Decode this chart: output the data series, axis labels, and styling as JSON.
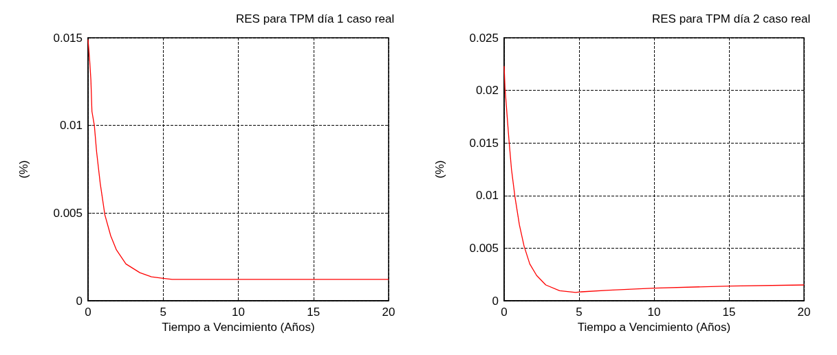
{
  "chart_data": [
    {
      "type": "line",
      "title": "RES para TPM día 1 caso real",
      "xlabel": "Tiempo a Vencimiento (Años)",
      "ylabel": "(%)",
      "xlim": [
        0,
        20
      ],
      "xticks": [
        0,
        5,
        10,
        15,
        20
      ],
      "ylim": [
        0,
        0.015
      ],
      "yticks": [
        0,
        0.005,
        0.01,
        0.015
      ],
      "grid": true,
      "series": [
        {
          "color": "#ff0000",
          "x": [
            0,
            0.11,
            0.19,
            0.26,
            0.42,
            0.57,
            0.81,
            1.12,
            1.51,
            1.89,
            2.52,
            3.45,
            4.22,
            5,
            5.6,
            10,
            15,
            20
          ],
          "values": [
            0.0149,
            0.0137,
            0.0126,
            0.0108,
            0.01,
            0.0085,
            0.0067,
            0.0049,
            0.0037,
            0.0029,
            0.0021,
            0.0016,
            0.00137,
            0.00128,
            0.00122,
            0.00122,
            0.00122,
            0.00122
          ]
        }
      ]
    },
    {
      "type": "line",
      "title": "RES para TPM día 2 caso real",
      "xlabel": "Tiempo a Vencimiento (Años)",
      "ylabel": "(%)",
      "xlim": [
        0,
        20
      ],
      "xticks": [
        0,
        5,
        10,
        15,
        20
      ],
      "ylim": [
        0,
        0.025
      ],
      "yticks": [
        0,
        0.005,
        0.01,
        0.015,
        0.02,
        0.025
      ],
      "grid": true,
      "series": [
        {
          "color": "#ff0000",
          "x": [
            0,
            0.06,
            0.15,
            0.31,
            0.49,
            0.72,
            1.02,
            1.33,
            1.71,
            2.17,
            2.78,
            3.7,
            4.77,
            5.15,
            7,
            10,
            15,
            20
          ],
          "values": [
            0.0223,
            0.0202,
            0.0185,
            0.0155,
            0.0125,
            0.0099,
            0.0072,
            0.0052,
            0.0035,
            0.0024,
            0.0015,
            0.00096,
            0.00079,
            0.00085,
            0.001,
            0.0012,
            0.0014,
            0.0015
          ]
        }
      ]
    }
  ]
}
